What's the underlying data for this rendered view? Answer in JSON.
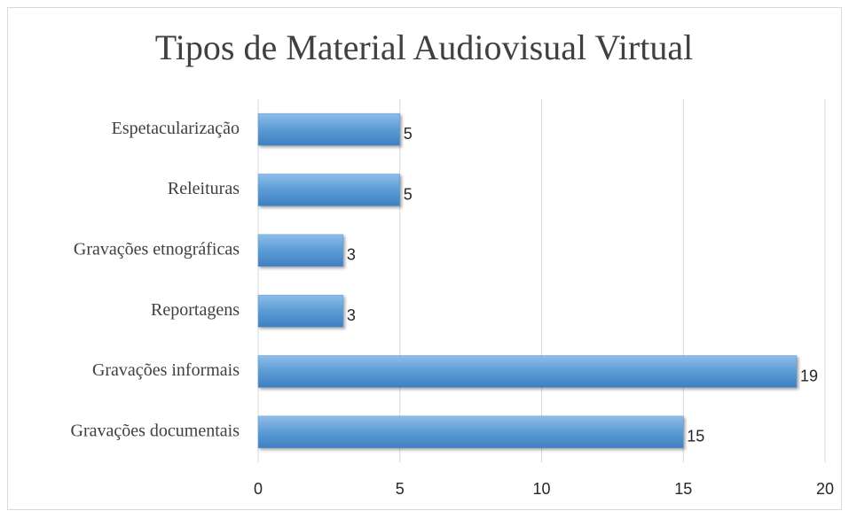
{
  "chart_data": {
    "type": "bar",
    "orientation": "horizontal",
    "title": "Tipos de Material Audiovisual Virtual",
    "categories": [
      "Espetacularização",
      "Releituras",
      "Gravações etnográficas",
      "Reportagens",
      "Gravações informais",
      "Gravações documentais"
    ],
    "values": [
      5,
      5,
      3,
      3,
      19,
      15
    ],
    "color": "#5b9bd5",
    "xlim": [
      0,
      20
    ],
    "xticks": [
      0,
      5,
      10,
      15,
      20
    ],
    "grid": true,
    "data_labels": true
  }
}
